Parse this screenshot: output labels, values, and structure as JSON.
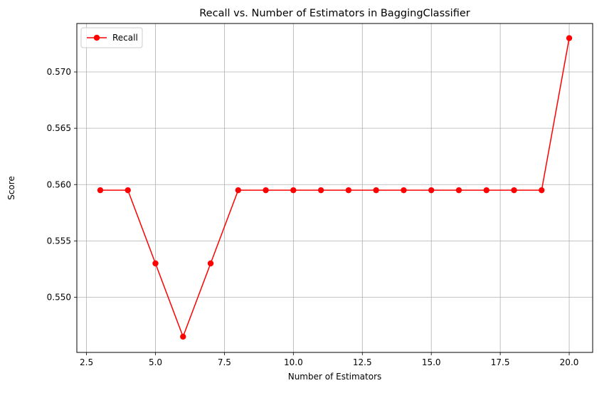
{
  "chart_data": {
    "type": "line",
    "title": "Recall vs. Number of Estimators in BaggingClassifier",
    "xlabel": "Number of Estimators",
    "ylabel": "Score",
    "xlim": [
      2.15,
      20.85
    ],
    "ylim": [
      0.5451,
      0.5743
    ],
    "x_ticks": [
      2.5,
      5.0,
      7.5,
      10.0,
      12.5,
      15.0,
      17.5,
      20.0
    ],
    "x_tick_labels": [
      "2.5",
      "5.0",
      "7.5",
      "10.0",
      "12.5",
      "15.0",
      "17.5",
      "20.0"
    ],
    "y_ticks": [
      0.55,
      0.555,
      0.56,
      0.565,
      0.57
    ],
    "y_tick_labels": [
      "0.550",
      "0.555",
      "0.560",
      "0.565",
      "0.570"
    ],
    "grid": true,
    "legend_position": "top-left",
    "series": [
      {
        "name": "Recall",
        "color": "#ff0000",
        "marker": "circle",
        "x": [
          3,
          4,
          5,
          6,
          7,
          8,
          9,
          10,
          11,
          12,
          13,
          14,
          15,
          16,
          17,
          18,
          19,
          20
        ],
        "values": [
          0.5595,
          0.5595,
          0.553,
          0.5465,
          0.553,
          0.5595,
          0.5595,
          0.5595,
          0.5595,
          0.5595,
          0.5595,
          0.5595,
          0.5595,
          0.5595,
          0.5595,
          0.5595,
          0.5595,
          0.573
        ]
      }
    ]
  }
}
